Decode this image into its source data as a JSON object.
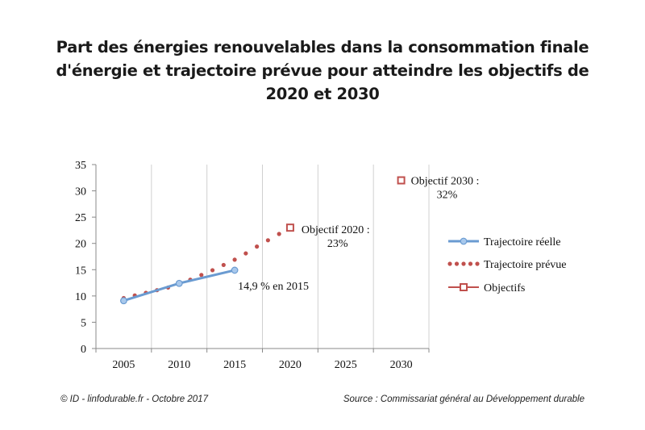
{
  "title_lines": [
    "Part des énergies renouvelables dans la consommation finale",
    "d'énergie et trajectoire prévue pour atteindre les objectifs de",
    "2020 et 2030"
  ],
  "footer": {
    "credit": "© ID - linfodurable.fr - Octobre 2017",
    "source": "Source : Commissariat général au Développement durable"
  },
  "chart_data": {
    "type": "line",
    "title": "Part des énergies renouvelables dans la consommation finale d'énergie et trajectoire prévue pour atteindre les objectifs de 2020 et 2030",
    "xlabel": "",
    "ylabel": "",
    "xlim": [
      2005,
      2030
    ],
    "ylim": [
      0,
      35
    ],
    "x_ticks": [
      "2005",
      "2010",
      "2015",
      "2020",
      "2025",
      "2030"
    ],
    "y_ticks": [
      "0",
      "5",
      "10",
      "15",
      "20",
      "25",
      "30",
      "35"
    ],
    "grid": "vertical",
    "legend": "right",
    "series": [
      {
        "name": "Trajectoire réelle",
        "style": "solid-line-circle-markers",
        "color": "#6a9bd1",
        "x": [
          2005,
          2010,
          2015
        ],
        "y": [
          9.1,
          12.4,
          14.9
        ]
      },
      {
        "name": "Trajectoire prévue",
        "style": "dotted",
        "color": "#c0504d",
        "x": [
          2005,
          2006,
          2007,
          2008,
          2009,
          2010,
          2011,
          2012,
          2013,
          2014,
          2015,
          2016,
          2017,
          2018,
          2019,
          2020
        ],
        "y": [
          9.6,
          10.1,
          10.6,
          11.1,
          11.6,
          12.2,
          13.1,
          14.0,
          14.9,
          15.9,
          16.9,
          18.1,
          19.4,
          20.6,
          21.8,
          23.0
        ]
      },
      {
        "name": "Objectifs",
        "style": "square-markers",
        "color": "#c0504d",
        "x": [
          2020,
          2030
        ],
        "y": [
          23,
          32
        ]
      }
    ],
    "annotations": [
      {
        "lines": [
          "14,9 % en 2015"
        ],
        "x": 2015,
        "y": 14.9
      },
      {
        "lines": [
          "Objectif 2020 :",
          "23%"
        ],
        "x": 2020,
        "y": 23
      },
      {
        "lines": [
          "Objectif 2030 :",
          "32%"
        ],
        "x": 2030,
        "y": 32
      }
    ]
  }
}
